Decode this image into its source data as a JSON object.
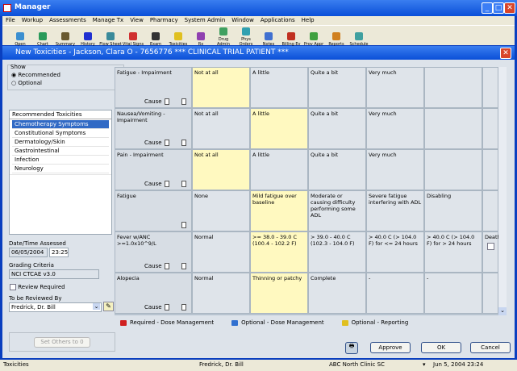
{
  "window": {
    "title": "Manager"
  },
  "menu": [
    "File",
    "Workup",
    "Assessments",
    "Manage Tx",
    "View",
    "Pharmacy",
    "System Admin",
    "Window",
    "Applications",
    "Help"
  ],
  "toolbar": [
    {
      "label": "Open",
      "color": "#3b8fd0"
    },
    {
      "label": "Chart",
      "color": "#2a9a5a"
    },
    {
      "label": "Summary",
      "color": "#6a5a30"
    },
    {
      "label": "History",
      "color": "#2030d0"
    },
    {
      "label": "Flow Sheet",
      "color": "#3a8a9a"
    },
    {
      "label": "Vital Signs",
      "color": "#d03030"
    },
    {
      "label": "Exam",
      "color": "#333333"
    },
    {
      "label": "Toxicities",
      "color": "#e0c020"
    },
    {
      "label": "Rx",
      "color": "#9040b0"
    },
    {
      "label": "Drug Admin",
      "color": "#40a060"
    },
    {
      "label": "Phys Orders",
      "color": "#30a0b0"
    },
    {
      "label": "Notes",
      "color": "#4070d0"
    },
    {
      "label": "Billing Ev",
      "color": "#c03020"
    },
    {
      "label": "Prov Appr",
      "color": "#40a040"
    },
    {
      "label": "Reports",
      "color": "#d08020"
    },
    {
      "label": "Schedule",
      "color": "#40a0a0"
    }
  ],
  "dialog": {
    "title": "New Toxicities - Jackson, Clara O - 7656776 *** CLINICAL TRIAL PATIENT ***",
    "show": {
      "label": "Show",
      "options": [
        "Recommended",
        "Optional"
      ],
      "selected": "Recommended"
    },
    "toxicity_list": {
      "header": "Recommended Toxicities",
      "items": [
        "Chemotherapy Symptoms",
        "Constitutional Symptoms",
        "Dermatology/Skin",
        "Gastrointestinal",
        "Infection",
        "Neurology"
      ],
      "selected": "Chemotherapy Symptoms"
    },
    "date_label": "Date/Time Assessed",
    "date": "06/05/2004",
    "time": "23:25",
    "grading_label": "Grading Criteria",
    "grading": "NCI CTCAE v3.0",
    "review_required": "Review Required",
    "reviewer_label": "To be Reviewed By",
    "reviewer": "Fredrick, Dr. Bill",
    "set_others": "Set Others to 0",
    "cause_label": "Cause",
    "rows": [
      {
        "name": "Fatigue - Impairment",
        "grades": [
          "Not at all",
          "A little",
          "Quite a bit",
          "Very much",
          "",
          ""
        ],
        "selected": 0,
        "cause": true
      },
      {
        "name": "Nausea/Vomiting - Impairment",
        "grades": [
          "Not at all",
          "A little",
          "Quite a bit",
          "Very much",
          "",
          ""
        ],
        "selected": 1,
        "cause": true
      },
      {
        "name": "Pain - Impairment",
        "grades": [
          "Not at all",
          "A little",
          "Quite a bit",
          "Very much",
          "",
          ""
        ],
        "selected": 0,
        "cause": true
      },
      {
        "name": "Fatigue",
        "grades": [
          "None",
          "Mild fatigue over baseline",
          "Moderate or causing difficulty performing some ADL",
          "Severe fatigue interfering with ADL",
          "Disabling",
          ""
        ],
        "selected": 1,
        "cause": false
      },
      {
        "name": "Fever w/ANC >=1.0x10^9/L",
        "grades": [
          "Normal",
          ">= 38.0 - 39.0 C (100.4 - 102.2 F)",
          "> 39.0 - 40.0 C (102.3 - 104.0 F)",
          "> 40.0 C (> 104.0 F) for <= 24 hours",
          "> 40.0 C (> 104.0 F) for > 24 hours",
          "Death"
        ],
        "selected": 1,
        "cause": true
      },
      {
        "name": "Alopecia",
        "grades": [
          "Normal",
          "Thinning or patchy",
          "Complete",
          "-",
          "-",
          ""
        ],
        "selected": 1,
        "cause": true
      }
    ],
    "legend": [
      {
        "label": "Required - Dose Management",
        "color": "#d02020"
      },
      {
        "label": "Optional - Dose Management",
        "color": "#3070d0"
      },
      {
        "label": "Optional - Reporting",
        "color": "#e0c020"
      }
    ],
    "buttons": {
      "approve": "Approve",
      "ok": "OK",
      "cancel": "Cancel"
    }
  },
  "status": {
    "module": "Toxicities",
    "user": "Fredrick, Dr. Bill",
    "clinic": "ABC North Clinic SC",
    "datetime": "Jun 5, 2004 23:24"
  }
}
